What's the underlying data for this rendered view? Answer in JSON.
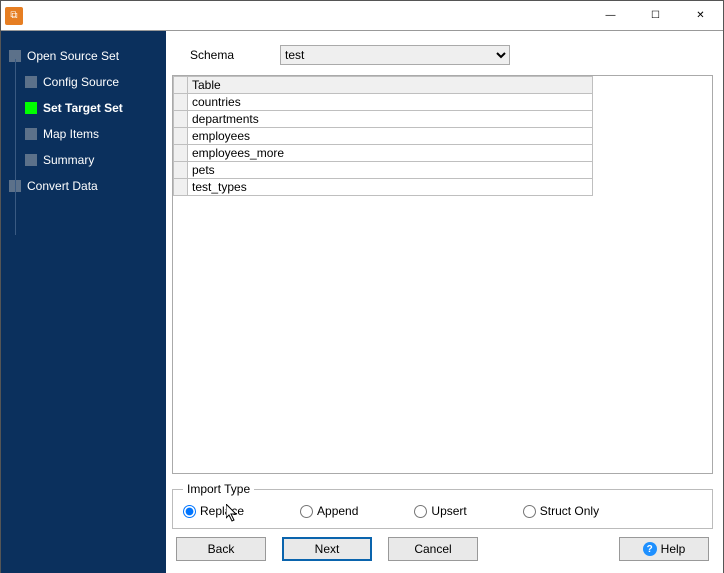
{
  "titlebar": {
    "minimize": "—",
    "maximize": "☐",
    "close": "✕"
  },
  "sidebar": {
    "steps": [
      {
        "label": "Open Source Set",
        "child": false,
        "active": false
      },
      {
        "label": "Config Source",
        "child": true,
        "active": false
      },
      {
        "label": "Set Target Set",
        "child": true,
        "active": true
      },
      {
        "label": "Map Items",
        "child": true,
        "active": false
      },
      {
        "label": "Summary",
        "child": true,
        "active": false
      },
      {
        "label": "Convert Data",
        "child": false,
        "active": false
      }
    ]
  },
  "schema": {
    "label": "Schema",
    "value": "test",
    "options": [
      "test"
    ]
  },
  "table": {
    "header": "Table",
    "rows": [
      "countries",
      "departments",
      "employees",
      "employees_more",
      "pets",
      "test_types"
    ]
  },
  "importType": {
    "legend": "Import Type",
    "selected": "Replace",
    "options": [
      "Replace",
      "Append",
      "Upsert",
      "Struct Only"
    ]
  },
  "buttons": {
    "back": "Back",
    "next": "Next",
    "cancel": "Cancel",
    "help": "Help"
  }
}
